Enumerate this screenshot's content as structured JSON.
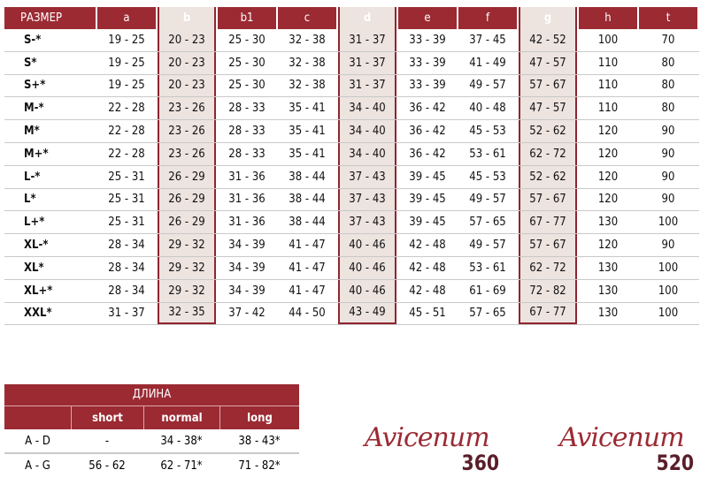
{
  "size_table": {
    "headers": [
      "РАЗМЕР",
      "a",
      "b",
      "b1",
      "c",
      "d",
      "e",
      "f",
      "g",
      "h",
      "t"
    ],
    "highlighted_columns": [
      "b",
      "d",
      "g"
    ],
    "rows": [
      [
        "S-*",
        "19 - 25",
        "20 - 23",
        "25 - 30",
        "32 - 38",
        "31 - 37",
        "33 - 39",
        "37 - 45",
        "42 - 52",
        "100",
        "70"
      ],
      [
        "S*",
        "19 - 25",
        "20 - 23",
        "25 - 30",
        "32 - 38",
        "31 - 37",
        "33 - 39",
        "41 - 49",
        "47 - 57",
        "110",
        "80"
      ],
      [
        "S+*",
        "19 - 25",
        "20 - 23",
        "25 - 30",
        "32 - 38",
        "31 - 37",
        "33 - 39",
        "49 - 57",
        "57 - 67",
        "110",
        "80"
      ],
      [
        "M-*",
        "22 - 28",
        "23 - 26",
        "28 - 33",
        "35 - 41",
        "34 - 40",
        "36 - 42",
        "40 - 48",
        "47 - 57",
        "110",
        "80"
      ],
      [
        "M*",
        "22 - 28",
        "23 - 26",
        "28 - 33",
        "35 - 41",
        "34 - 40",
        "36 - 42",
        "45 - 53",
        "52 - 62",
        "120",
        "90"
      ],
      [
        "M+*",
        "22 - 28",
        "23 - 26",
        "28 - 33",
        "35 - 41",
        "34 - 40",
        "36 - 42",
        "53 - 61",
        "62 - 72",
        "120",
        "90"
      ],
      [
        "L-*",
        "25 - 31",
        "26 - 29",
        "31 - 36",
        "38 - 44",
        "37 - 43",
        "39 - 45",
        "45 - 53",
        "52 - 62",
        "120",
        "90"
      ],
      [
        "L*",
        "25 - 31",
        "26 - 29",
        "31 - 36",
        "38 - 44",
        "37 - 43",
        "39 - 45",
        "49 - 57",
        "57 - 67",
        "120",
        "90"
      ],
      [
        "L+*",
        "25 - 31",
        "26 - 29",
        "31 - 36",
        "38 - 44",
        "37 - 43",
        "39 - 45",
        "57 - 65",
        "67 - 77",
        "130",
        "100"
      ],
      [
        "XL-*",
        "28 - 34",
        "29 - 32",
        "34 - 39",
        "41 - 47",
        "40 - 46",
        "42 - 48",
        "49 - 57",
        "57 - 67",
        "120",
        "90"
      ],
      [
        "XL*",
        "28 - 34",
        "29 - 32",
        "34 - 39",
        "41 - 47",
        "40 - 46",
        "42 - 48",
        "53 - 61",
        "62 - 72",
        "130",
        "100"
      ],
      [
        "XL+*",
        "28 - 34",
        "29 - 32",
        "34 - 39",
        "41 - 47",
        "40 - 46",
        "42 - 48",
        "61 - 69",
        "72 - 82",
        "130",
        "100"
      ],
      [
        "XXL*",
        "31 - 37",
        "32 - 35",
        "37 - 42",
        "44 - 50",
        "43 - 49",
        "45 - 51",
        "57 - 65",
        "67 - 77",
        "130",
        "100"
      ]
    ]
  },
  "length_table": {
    "title": "ДЛИНА",
    "headers": [
      "",
      "short",
      "normal",
      "long"
    ],
    "rows": [
      [
        "A - D",
        "-",
        "34 - 38*",
        "38 - 43*"
      ],
      [
        "A - G",
        "56 - 62",
        "62 - 71*",
        "71 - 82*"
      ]
    ]
  },
  "logos": [
    {
      "brand": "Avicenum",
      "number": "360"
    },
    {
      "brand": "Avicenum",
      "number": "520"
    }
  ],
  "colors": {
    "header": "#9b2a33",
    "highlight": "#ede3df",
    "logo_script": "#9b2a33",
    "logo_number": "#5a1f2a"
  }
}
